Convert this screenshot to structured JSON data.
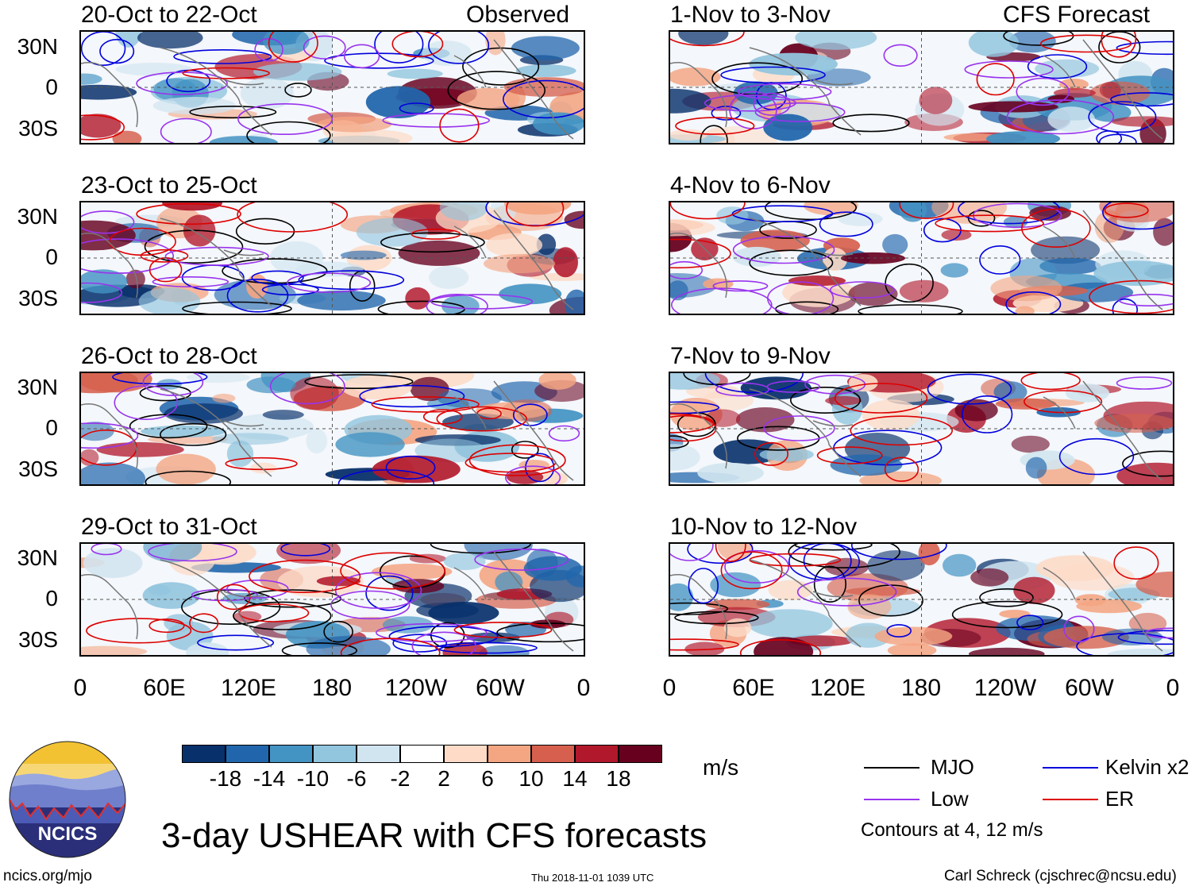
{
  "title": "3-day USHEAR with CFS forecasts",
  "url": "ncics.org/mjo",
  "timestamp": "Thu 2018-11-01 1039 UTC",
  "credit": "Carl Schreck (cjschrec@ncsu.edu)",
  "logo_text": "NCICS",
  "units": "m/s",
  "contour_note": "Contours at 4, 12 m/s",
  "left_header": "Observed",
  "right_header": "CFS Forecast",
  "chart_data": {
    "type": "heatmap",
    "variable": "USHEAR",
    "observed_panels": [
      "20-Oct to 22-Oct",
      "23-Oct to 25-Oct",
      "26-Oct to 28-Oct",
      "29-Oct to 31-Oct"
    ],
    "forecast_panels": [
      "1-Nov to 3-Nov",
      "4-Nov to 6-Nov",
      "7-Nov to 9-Nov",
      "10-Nov to 12-Nov"
    ],
    "lat_ticks": [
      "30N",
      "0",
      "30S"
    ],
    "lon_ticks": [
      "0",
      "60E",
      "120E",
      "180",
      "120W",
      "60W",
      "0"
    ],
    "lat_range": [
      -40,
      40
    ],
    "lon_range": [
      0,
      360
    ],
    "colorbar_levels": [
      "-18",
      "-14",
      "-10",
      "-6",
      "-2",
      "2",
      "6",
      "10",
      "14",
      "18"
    ],
    "colorbar_colors": [
      "#08306b",
      "#2166ac",
      "#4393c3",
      "#92c5de",
      "#d1e5f0",
      "#ffffff",
      "#fddbc7",
      "#f4a582",
      "#d6604d",
      "#b2182b",
      "#67001f"
    ],
    "legend": [
      {
        "label": "MJO",
        "color": "#000000"
      },
      {
        "label": "Kelvin x2",
        "color": "#0000dd"
      },
      {
        "label": "Low",
        "color": "#9933ee"
      },
      {
        "label": "ER",
        "color": "#dd0000"
      }
    ]
  }
}
